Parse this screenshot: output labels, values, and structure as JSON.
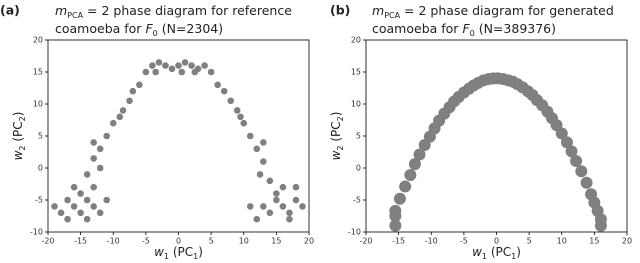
{
  "chart_data": [
    {
      "type": "scatter",
      "panel_label": "(a)",
      "title": [
        [
          {
            "text": "m",
            "italic": true
          },
          {
            "text": "PCA",
            "sub": true
          },
          {
            "text": " = 2 phase diagram for reference"
          }
        ],
        [
          {
            "text": "coamoeba for "
          },
          {
            "text": "F",
            "italic": true
          },
          {
            "text": "0",
            "sub": true
          },
          {
            "text": " (N=2304)"
          }
        ]
      ],
      "xlabel": [
        {
          "text": "w",
          "italic": true
        },
        {
          "text": "1",
          "sub": true
        },
        {
          "text": " (PC"
        },
        {
          "text": "1",
          "sub": true
        },
        {
          "text": ")"
        }
      ],
      "ylabel": [
        {
          "text": "w",
          "italic": true
        },
        {
          "text": "2",
          "sub": true
        },
        {
          "text": " (PC"
        },
        {
          "text": "2",
          "sub": true
        },
        {
          "text": ")"
        }
      ],
      "color": "#808080",
      "x": [
        -5,
        -4,
        -3,
        -2,
        -1,
        0,
        1,
        2,
        3,
        4,
        5,
        -3.5,
        2.5,
        0.5,
        -6,
        -7,
        -7.5,
        -8.5,
        -10,
        -11,
        -12,
        -13,
        -12,
        -14,
        -9,
        -13,
        -19,
        -18,
        -17,
        -16,
        -15,
        -14,
        -13,
        -12,
        -11,
        -16,
        -15,
        -14,
        -17,
        -13,
        6,
        7,
        8,
        9,
        10,
        11,
        12,
        13,
        12.5,
        14,
        9.5,
        13,
        19,
        18,
        17,
        16,
        15,
        14,
        13,
        12,
        11,
        16,
        15,
        17,
        18
      ],
      "values": [
        15,
        16,
        16.5,
        16,
        15.5,
        16,
        16.5,
        16,
        15.5,
        16,
        15,
        15,
        15,
        15,
        13,
        12,
        10.5,
        9,
        7,
        5,
        3,
        1.5,
        0,
        -1,
        8,
        4,
        -6,
        -7,
        -5,
        -6,
        -7,
        -5,
        -6,
        -7,
        -5,
        -3,
        -4,
        -8,
        -8,
        -3,
        13,
        12,
        10.5,
        9,
        7,
        5,
        3,
        1,
        -1,
        -2,
        8,
        4,
        -6,
        -5,
        -7,
        -6,
        -5,
        -7,
        -6,
        -8,
        -6,
        -3,
        -4,
        -8,
        -3
      ],
      "xlim": [
        -20,
        20
      ],
      "xticks": [
        -20,
        -15,
        -10,
        -5,
        0,
        5,
        10,
        15,
        20
      ],
      "ylim": [
        -10,
        20
      ],
      "yticks": [
        -10,
        -5,
        0,
        5,
        10,
        15,
        20
      ]
    },
    {
      "type": "scatter",
      "panel_label": "(b)",
      "title": [
        [
          {
            "text": "m",
            "italic": true
          },
          {
            "text": "PCA",
            "sub": true
          },
          {
            "text": " = 2 phase diagram for generated"
          }
        ],
        [
          {
            "text": "coamoeba for "
          },
          {
            "text": "F",
            "italic": true
          },
          {
            "text": "0",
            "sub": true
          },
          {
            "text": " (N=389376)"
          }
        ]
      ],
      "xlabel": [
        {
          "text": "w",
          "italic": true
        },
        {
          "text": "1",
          "sub": true
        },
        {
          "text": " (PC"
        },
        {
          "text": "1",
          "sub": true
        },
        {
          "text": ")"
        }
      ],
      "ylabel": [
        {
          "text": "w",
          "italic": true
        },
        {
          "text": "2",
          "sub": true
        },
        {
          "text": " (PC"
        },
        {
          "text": "2",
          "sub": true
        },
        {
          "text": ")"
        }
      ],
      "color": "#808080",
      "x": [
        -15.5,
        -15.5,
        -15.5,
        -14.8,
        -14,
        -13.2,
        -12.5,
        -11.8,
        -11,
        -10.2,
        -9.5,
        -8.8,
        -8,
        -7.2,
        -6.5,
        -5.8,
        -5,
        -4.2,
        -3.5,
        -2.8,
        -2,
        -1.2,
        -0.5,
        0.2,
        1,
        1.8,
        2.5,
        3.2,
        4,
        4.8,
        5.5,
        6.2,
        7,
        7.8,
        8.5,
        9.2,
        10,
        10.8,
        11.5,
        12.2,
        13,
        13.8,
        14.5,
        15,
        15.5,
        16,
        16
      ],
      "values": [
        -9,
        -7.5,
        -6.7,
        -4.8,
        -2.9,
        -1.1,
        0.6,
        2.1,
        3.6,
        4.9,
        6.2,
        7.4,
        8.5,
        9.5,
        10.4,
        11.1,
        11.8,
        12.4,
        12.9,
        13.3,
        13.7,
        13.9,
        14,
        14,
        13.9,
        13.7,
        13.5,
        13.1,
        12.6,
        12,
        11.4,
        10.6,
        9.8,
        8.8,
        7.8,
        6.7,
        5.4,
        4,
        2.6,
        1.1,
        -0.5,
        -2.3,
        -4.1,
        -5.4,
        -6.7,
        -8,
        -9
      ],
      "xlim": [
        -20,
        20
      ],
      "xticks": [
        -20,
        -15,
        -10,
        -5,
        0,
        5,
        10,
        15,
        20
      ],
      "ylim": [
        -10,
        20
      ],
      "yticks": [
        -10,
        -5,
        0,
        5,
        10,
        15,
        20
      ]
    }
  ]
}
